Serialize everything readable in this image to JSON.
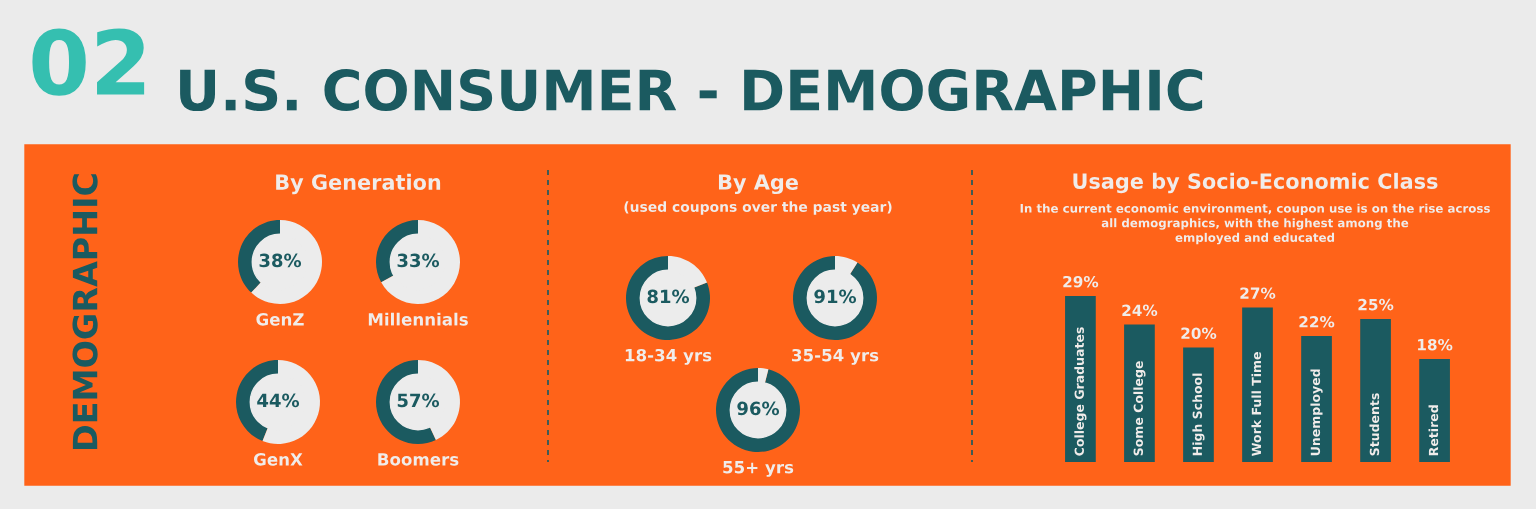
{
  "chart_data": [
    {
      "type": "other",
      "title": "U.S. CONSUMER - DEMOGRAPHIC",
      "annotations": [
        "02",
        "DEMOGRAPHIC",
        "By Generation",
        "By Age",
        "(used coupons over the past year)"
      ]
    },
    {
      "type": "donut",
      "title": "GenZ",
      "categories": [
        null,
        null
      ],
      "values": [
        38,
        62
      ],
      "colors": [
        "#1b5a60",
        "#ececec"
      ],
      "value_labels": [
        "38%",
        null
      ]
    },
    {
      "type": "donut",
      "title": "Millennials",
      "categories": [
        null,
        null
      ],
      "values": [
        33,
        67
      ],
      "colors": [
        "#1b5a60",
        "#ececec"
      ],
      "value_labels": [
        "33%",
        null
      ]
    },
    {
      "type": "donut",
      "title": "GenX",
      "categories": [
        null,
        null
      ],
      "values": [
        44,
        56
      ],
      "colors": [
        "#1b5a60",
        "#ececec"
      ],
      "value_labels": [
        "44%",
        null
      ]
    },
    {
      "type": "donut",
      "title": "Boomers",
      "categories": [
        null,
        null
      ],
      "values": [
        57,
        43
      ],
      "colors": [
        "#1b5a60",
        "#ececec"
      ],
      "value_labels": [
        "57%",
        null
      ]
    },
    {
      "type": "donut",
      "title": "18-34 yrs",
      "categories": [
        null,
        null
      ],
      "values": [
        81,
        19
      ],
      "colors": [
        "#1b5a60",
        "#ececec"
      ],
      "value_labels": [
        "81%",
        null
      ]
    },
    {
      "type": "donut",
      "title": "35-54 yrs",
      "categories": [
        null,
        null
      ],
      "values": [
        91,
        9
      ],
      "colors": [
        "#1b5a60",
        "#ececec"
      ],
      "value_labels": [
        "91%",
        null
      ]
    },
    {
      "type": "donut",
      "title": "55+ yrs",
      "categories": [
        null,
        null
      ],
      "values": [
        96,
        4
      ],
      "colors": [
        "#1b5a60",
        "#ececec"
      ],
      "value_labels": [
        "96%",
        null
      ]
    },
    {
      "type": "bar",
      "title": "Usage by Socio-Economic Class",
      "subtitle": "In the current economic environment, coupon use is on the rise across\nall demographics, with the highest among the\nemployed and educated",
      "categories": [
        "College Graduates",
        "Some College",
        "High School",
        "Work Full Time",
        "Unemployed",
        "Students",
        "Retired"
      ],
      "values": [
        29,
        24,
        20,
        27,
        22,
        25,
        18
      ],
      "color": "#1b5a60",
      "value_labels": [
        "29%",
        "24%",
        "20%",
        "27%",
        "22%",
        "25%",
        "18%"
      ]
    }
  ]
}
